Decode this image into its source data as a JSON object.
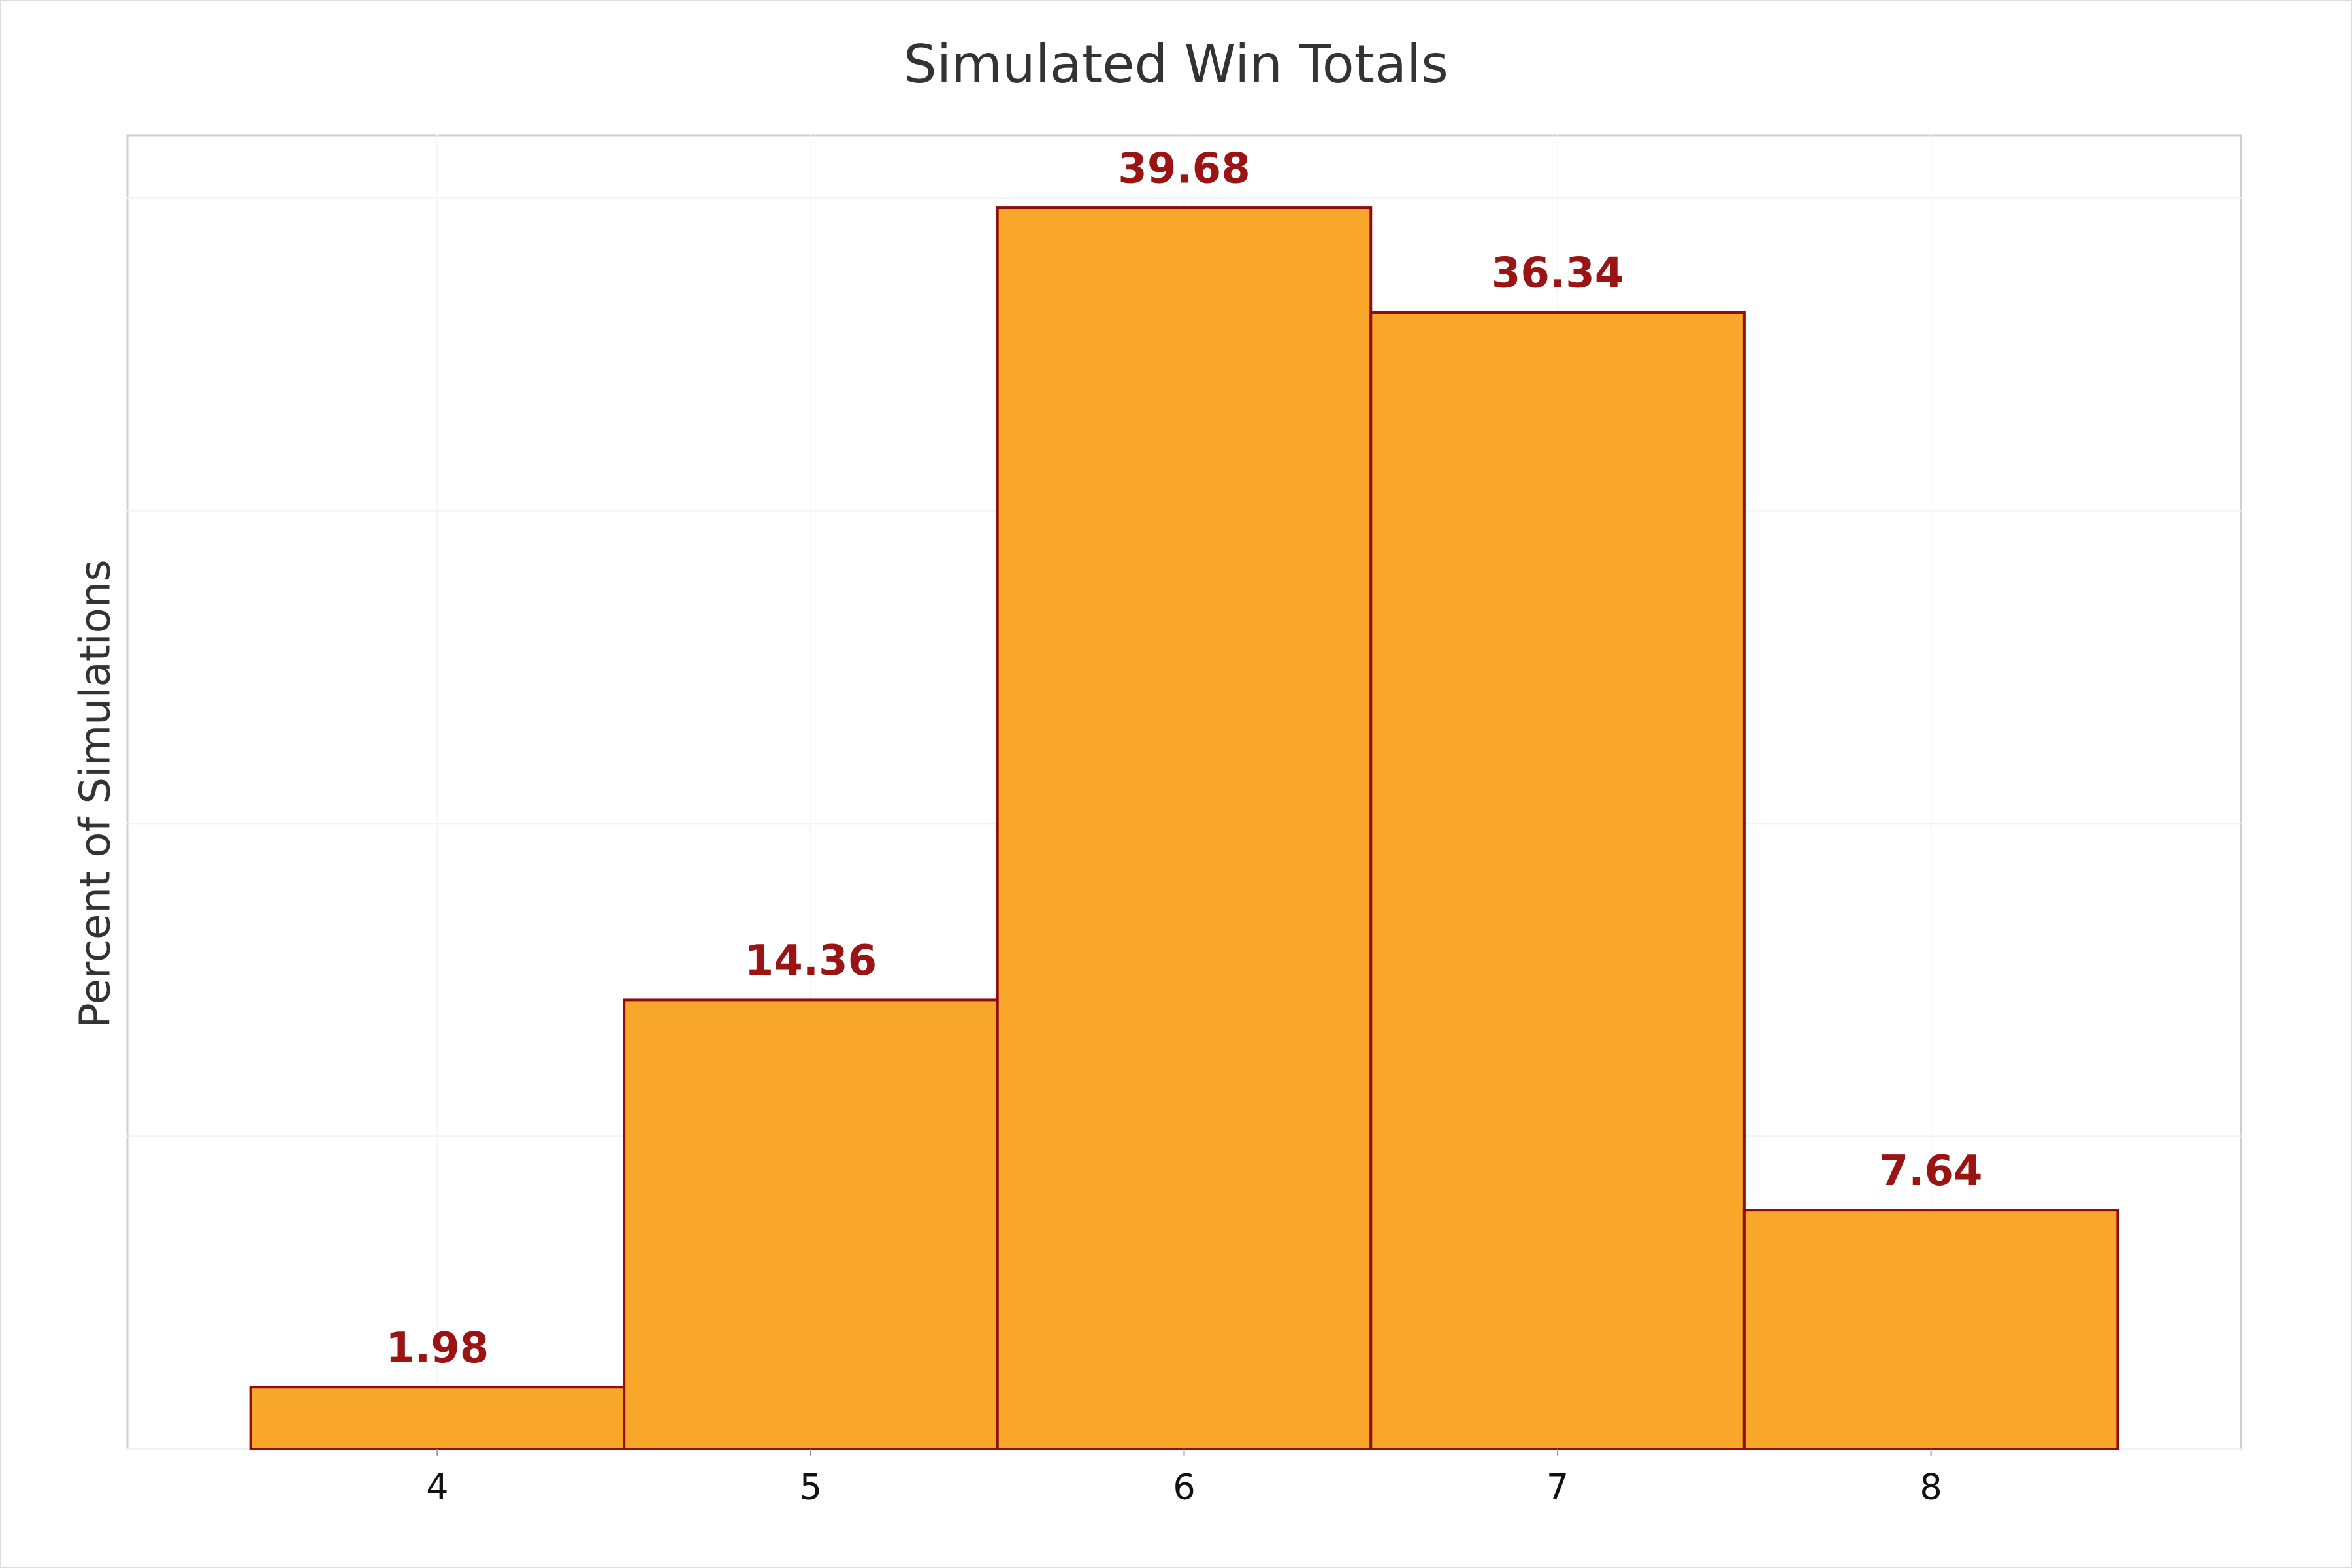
{
  "chart_data": {
    "type": "bar",
    "title": "Simulated Win Totals",
    "ylabel": "Percent of Simulations",
    "x": [
      4,
      5,
      6,
      7,
      8
    ],
    "values": [
      1.98,
      14.36,
      39.68,
      36.34,
      7.64
    ],
    "color": "#f9a72a",
    "edge_color": "#8e0d0d",
    "label_color": "#9b1414",
    "xlim": [
      3.17,
      8.83
    ],
    "xticks": [
      4,
      5,
      6,
      7,
      8
    ],
    "ylim": [
      0,
      42
    ],
    "yticks": [
      0,
      10,
      20,
      30,
      40
    ],
    "ytick_labels": false,
    "grid": true
  }
}
